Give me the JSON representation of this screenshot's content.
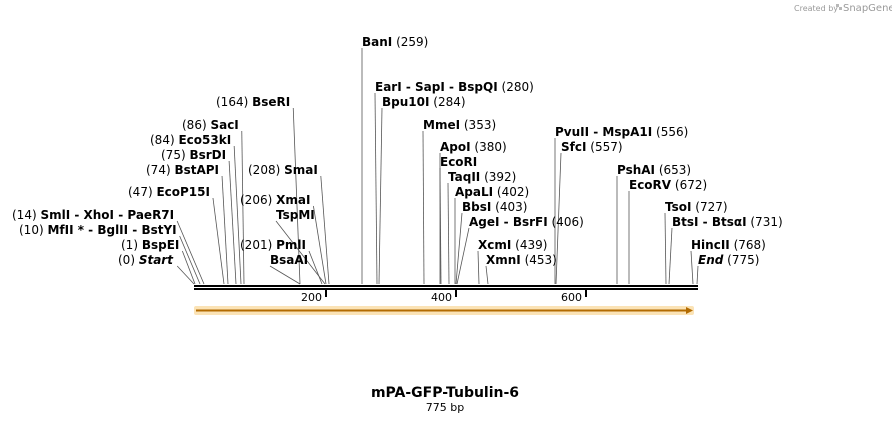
{
  "credit": {
    "created_by": "Created by",
    "brand": "SnapGene"
  },
  "map": {
    "title": "mPA-GFP-Tubulin-6",
    "length_label": "775 bp",
    "ticks": [
      {
        "value": 200,
        "label": "200"
      },
      {
        "value": 400,
        "label": "400"
      },
      {
        "value": 600,
        "label": "600"
      }
    ],
    "feature": {
      "from": 1,
      "to": 775,
      "direction": "forward",
      "color": "#f5a623"
    }
  },
  "sites": [
    {
      "pos": "(259)",
      "names": [
        "BanI"
      ]
    },
    {
      "pos": "(280)",
      "names": [
        "EarI",
        "SapI",
        "BspQI"
      ]
    },
    {
      "pos": "(284)",
      "names": [
        "Bpu10I"
      ]
    },
    {
      "pos": "(164)",
      "names": [
        "BseRI"
      ],
      "pos_first": true
    },
    {
      "pos": "(353)",
      "names": [
        "MmeI"
      ]
    },
    {
      "pos": "(86)",
      "names": [
        "SacI"
      ],
      "pos_first": true
    },
    {
      "pos": "(556)",
      "names": [
        "PvuII",
        "MspA1I"
      ]
    },
    {
      "pos": "(84)",
      "names": [
        "Eco53kI"
      ],
      "pos_first": true
    },
    {
      "pos": "(380)",
      "names": [
        "ApoI"
      ]
    },
    {
      "pos": "(557)",
      "names": [
        "SfcI"
      ]
    },
    {
      "pos": "(75)",
      "names": [
        "BsrDI"
      ],
      "pos_first": true
    },
    {
      "pos": "",
      "names": [
        "EcoRI"
      ]
    },
    {
      "pos": "(74)",
      "names": [
        "BstAPI"
      ],
      "pos_first": true
    },
    {
      "pos": "(208)",
      "names": [
        "SmaI"
      ],
      "pos_first": true
    },
    {
      "pos": "(653)",
      "names": [
        "PshAI"
      ]
    },
    {
      "pos": "(392)",
      "names": [
        "TaqII"
      ]
    },
    {
      "pos": "(672)",
      "names": [
        "EcoRV"
      ]
    },
    {
      "pos": "(47)",
      "names": [
        "EcoP15I"
      ],
      "pos_first": true
    },
    {
      "pos": "(402)",
      "names": [
        "ApaLI"
      ]
    },
    {
      "pos": "(206)",
      "names": [
        "XmaI"
      ],
      "pos_first": true
    },
    {
      "pos": "(403)",
      "names": [
        "BbsI"
      ]
    },
    {
      "pos": "(727)",
      "names": [
        "TsoI"
      ]
    },
    {
      "pos": "(14)",
      "names": [
        "SmlI",
        "XhoI",
        "PaeR7I"
      ],
      "pos_first": true
    },
    {
      "pos": "",
      "names": [
        "TspMI"
      ]
    },
    {
      "pos": "(406)",
      "names": [
        "AgeI",
        "BsrFI"
      ]
    },
    {
      "pos": "(731)",
      "names": [
        "BtsI",
        "BtsαI"
      ]
    },
    {
      "pos": "(10)",
      "names": [
        "MfII *",
        "BglII",
        "BstYI"
      ],
      "pos_first": true
    },
    {
      "pos": "(1)",
      "names": [
        "BspEI"
      ],
      "pos_first": true
    },
    {
      "pos": "(201)",
      "names": [
        "PmlI"
      ],
      "pos_first": true
    },
    {
      "pos": "(439)",
      "names": [
        "XcmI"
      ]
    },
    {
      "pos": "(768)",
      "names": [
        "HincII"
      ]
    },
    {
      "pos": "",
      "names": [
        "BsaAI"
      ]
    },
    {
      "pos": "(453)",
      "names": [
        "XmnI"
      ]
    },
    {
      "pos": "(0)",
      "names": [
        "Start"
      ],
      "pos_first": true,
      "italic": true
    },
    {
      "pos": "(775)",
      "names": [
        "End"
      ],
      "italic": true
    }
  ]
}
